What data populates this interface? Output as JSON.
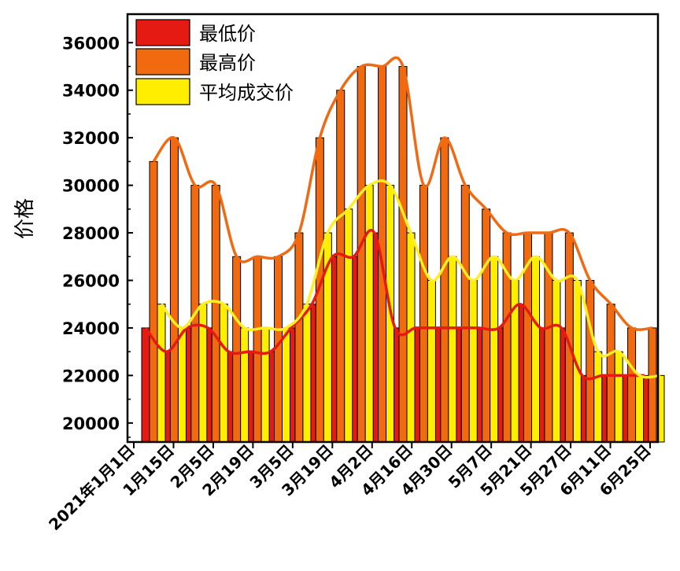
{
  "chart_data": {
    "type": "bar",
    "ylabel": "价格",
    "xlabel": "",
    "ylim": [
      19200,
      37200
    ],
    "yticks": [
      20000,
      22000,
      24000,
      26000,
      28000,
      30000,
      32000,
      34000,
      36000
    ],
    "grid": false,
    "legend_position": "top-left",
    "xtick_labels": [
      "2021年1月1日",
      "1月15日",
      "2月5日",
      "2月19日",
      "3月5日",
      "3月19日",
      "4月2日",
      "4月16日",
      "4月30日",
      "5月7日",
      "5月21日",
      "5月27日",
      "6月11日",
      "6月25日"
    ],
    "series": [
      {
        "name": "最低价",
        "color": "#e41a13",
        "values": [
          24000,
          23000,
          24000,
          24000,
          23000,
          23000,
          23000,
          24000,
          25000,
          27000,
          27000,
          28000,
          24000,
          24000,
          24000,
          24000,
          24000,
          24000,
          25000,
          24000,
          24000,
          22000,
          22000,
          22000,
          22000
        ]
      },
      {
        "name": "最高价",
        "color": "#f26a0f",
        "values": [
          31000,
          32000,
          30000,
          30000,
          27000,
          27000,
          27000,
          28000,
          32000,
          34000,
          35000,
          35000,
          35000,
          30000,
          32000,
          30000,
          29000,
          28000,
          28000,
          28000,
          28000,
          26000,
          25000,
          24000,
          24000
        ]
      },
      {
        "name": "平均成交价",
        "color": "#ffee00",
        "values": [
          25000,
          24000,
          25000,
          25000,
          24000,
          24000,
          24000,
          25000,
          28000,
          29000,
          30000,
          30000,
          28000,
          26000,
          27000,
          26000,
          27000,
          26000,
          27000,
          26000,
          26000,
          23000,
          23000,
          22000,
          22000
        ]
      }
    ]
  }
}
